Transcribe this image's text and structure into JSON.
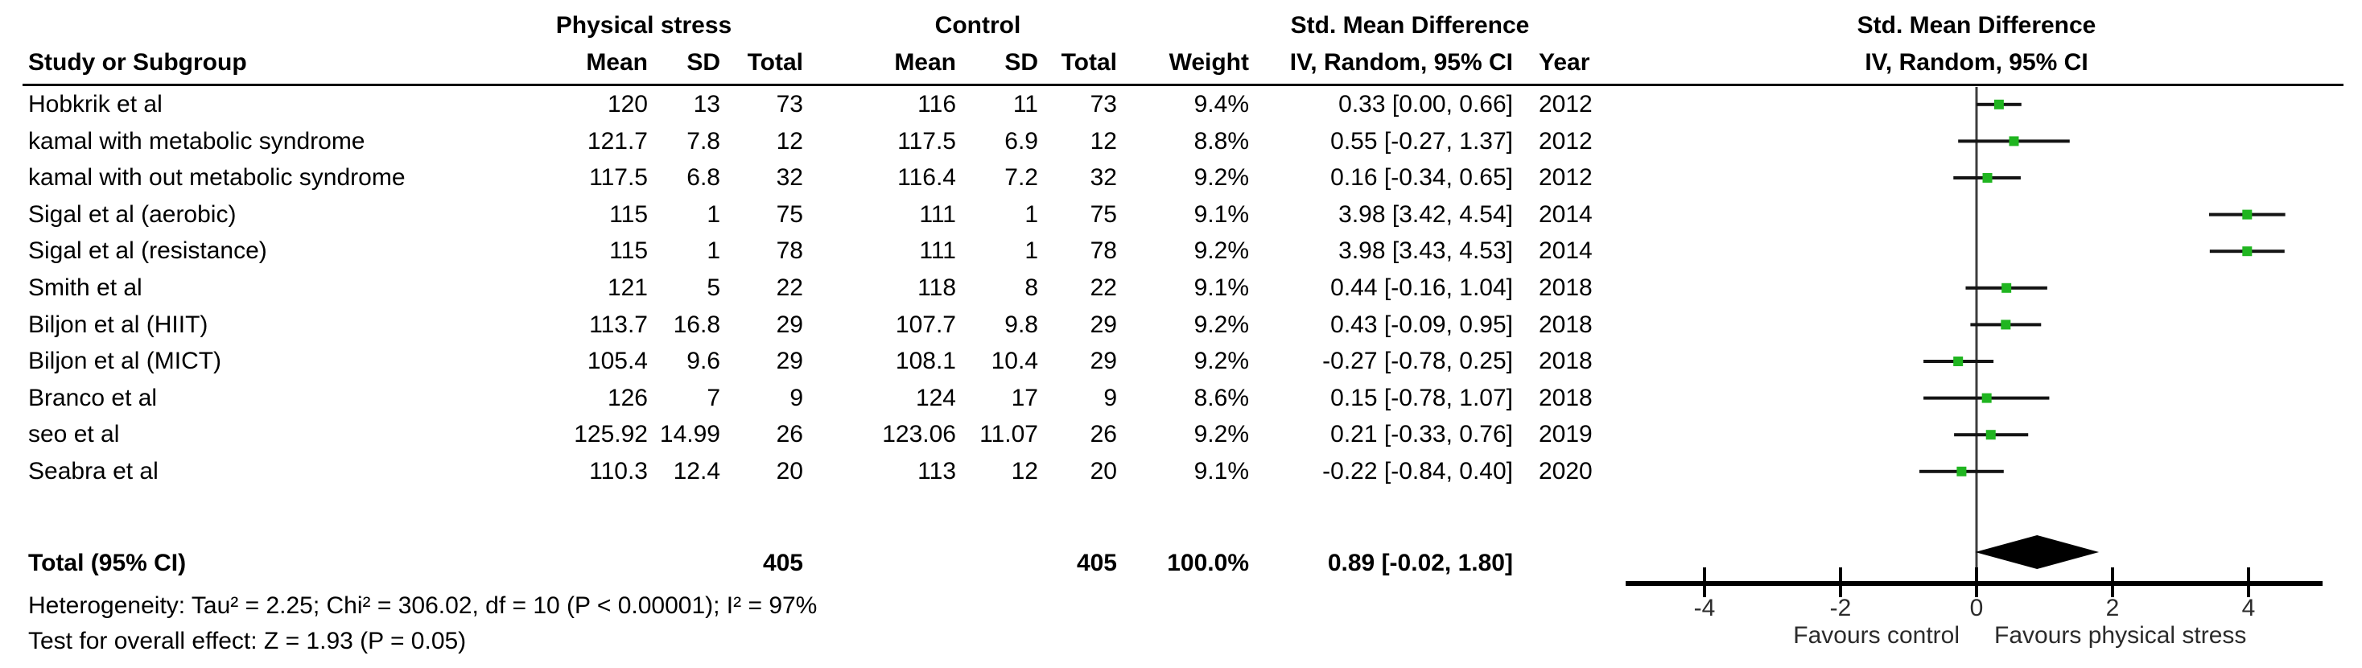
{
  "header": {
    "group_experimental": "Physical stress",
    "group_control": "Control",
    "group_effect": "Std. Mean Difference",
    "plot_title_line1": "Std. Mean Difference",
    "plot_title_line2": "IV, Random, 95% CI",
    "col_study": "Study or Subgroup",
    "col_mean": "Mean",
    "col_sd": "SD",
    "col_total": "Total",
    "col_weight": "Weight",
    "col_effect_method": "IV, Random, 95% CI",
    "col_year": "Year"
  },
  "chart_data": {
    "type": "forest",
    "effect_measure": "Std. Mean Difference",
    "method": "IV, Random, 95% CI",
    "axis": {
      "ticks": [
        -4,
        -2,
        0,
        2,
        4
      ],
      "min": -5,
      "max": 5,
      "zero_reference_line": true
    },
    "axis_labels": {
      "left": "Favours control",
      "right": "Favours physical stress"
    },
    "studies": [
      {
        "name": "Hobkrik et al",
        "exp_mean": "120",
        "exp_sd": "13",
        "exp_total": "73",
        "ctrl_mean": "116",
        "ctrl_sd": "11",
        "ctrl_total": "73",
        "weight": "9.4%",
        "smd_text": "0.33 [0.00, 0.66]",
        "year": "2012",
        "est": 0.33,
        "lo": 0.0,
        "hi": 0.66
      },
      {
        "name": "kamal with metabolic syndrome",
        "exp_mean": "121.7",
        "exp_sd": "7.8",
        "exp_total": "12",
        "ctrl_mean": "117.5",
        "ctrl_sd": "6.9",
        "ctrl_total": "12",
        "weight": "8.8%",
        "smd_text": "0.55 [-0.27, 1.37]",
        "year": "2012",
        "est": 0.55,
        "lo": -0.27,
        "hi": 1.37
      },
      {
        "name": "kamal with out metabolic syndrome",
        "exp_mean": "117.5",
        "exp_sd": "6.8",
        "exp_total": "32",
        "ctrl_mean": "116.4",
        "ctrl_sd": "7.2",
        "ctrl_total": "32",
        "weight": "9.2%",
        "smd_text": "0.16 [-0.34, 0.65]",
        "year": "2012",
        "est": 0.16,
        "lo": -0.34,
        "hi": 0.65
      },
      {
        "name": "Sigal et al (aerobic)",
        "exp_mean": "115",
        "exp_sd": "1",
        "exp_total": "75",
        "ctrl_mean": "111",
        "ctrl_sd": "1",
        "ctrl_total": "75",
        "weight": "9.1%",
        "smd_text": "3.98 [3.42, 4.54]",
        "year": "2014",
        "est": 3.98,
        "lo": 3.42,
        "hi": 4.54
      },
      {
        "name": "Sigal et al (resistance)",
        "exp_mean": "115",
        "exp_sd": "1",
        "exp_total": "78",
        "ctrl_mean": "111",
        "ctrl_sd": "1",
        "ctrl_total": "78",
        "weight": "9.2%",
        "smd_text": "3.98 [3.43, 4.53]",
        "year": "2014",
        "est": 3.98,
        "lo": 3.43,
        "hi": 4.53
      },
      {
        "name": "Smith et al",
        "exp_mean": "121",
        "exp_sd": "5",
        "exp_total": "22",
        "ctrl_mean": "118",
        "ctrl_sd": "8",
        "ctrl_total": "22",
        "weight": "9.1%",
        "smd_text": "0.44 [-0.16, 1.04]",
        "year": "2018",
        "est": 0.44,
        "lo": -0.16,
        "hi": 1.04
      },
      {
        "name": "Biljon et al (HIIT)",
        "exp_mean": "113.7",
        "exp_sd": "16.8",
        "exp_total": "29",
        "ctrl_mean": "107.7",
        "ctrl_sd": "9.8",
        "ctrl_total": "29",
        "weight": "9.2%",
        "smd_text": "0.43 [-0.09, 0.95]",
        "year": "2018",
        "est": 0.43,
        "lo": -0.09,
        "hi": 0.95
      },
      {
        "name": "Biljon et al (MICT)",
        "exp_mean": "105.4",
        "exp_sd": "9.6",
        "exp_total": "29",
        "ctrl_mean": "108.1",
        "ctrl_sd": "10.4",
        "ctrl_total": "29",
        "weight": "9.2%",
        "smd_text": "-0.27 [-0.78, 0.25]",
        "year": "2018",
        "est": -0.27,
        "lo": -0.78,
        "hi": 0.25
      },
      {
        "name": "Branco et al",
        "exp_mean": "126",
        "exp_sd": "7",
        "exp_total": "9",
        "ctrl_mean": "124",
        "ctrl_sd": "17",
        "ctrl_total": "9",
        "weight": "8.6%",
        "smd_text": "0.15 [-0.78, 1.07]",
        "year": "2018",
        "est": 0.15,
        "lo": -0.78,
        "hi": 1.07
      },
      {
        "name": "seo et al",
        "exp_mean": "125.92",
        "exp_sd": "14.99",
        "exp_total": "26",
        "ctrl_mean": "123.06",
        "ctrl_sd": "11.07",
        "ctrl_total": "26",
        "weight": "9.2%",
        "smd_text": "0.21 [-0.33, 0.76]",
        "year": "2019",
        "est": 0.21,
        "lo": -0.33,
        "hi": 0.76
      },
      {
        "name": "Seabra et al",
        "exp_mean": "110.3",
        "exp_sd": "12.4",
        "exp_total": "20",
        "ctrl_mean": "113",
        "ctrl_sd": "12",
        "ctrl_total": "20",
        "weight": "9.1%",
        "smd_text": "-0.22 [-0.84, 0.40]",
        "year": "2020",
        "est": -0.22,
        "lo": -0.84,
        "hi": 0.4
      }
    ],
    "total": {
      "label": "Total (95% CI)",
      "exp_total": "405",
      "ctrl_total": "405",
      "weight": "100.0%",
      "smd_text": "0.89 [-0.02, 1.80]",
      "est": 0.89,
      "lo": -0.02,
      "hi": 1.8
    },
    "heterogeneity": "Heterogeneity: Tau² = 2.25; Chi² = 306.02, df = 10 (P < 0.00001); I² = 97%",
    "overall_effect": "Test for overall effect: Z = 1.93 (P = 0.05)"
  },
  "colors": {
    "marker_green": "#20b520",
    "ci_line": "#141414",
    "diamond": "#000000",
    "axis": "#000000",
    "zero_line": "#3d3d3d",
    "secondary_text": "#2b2b2b"
  }
}
